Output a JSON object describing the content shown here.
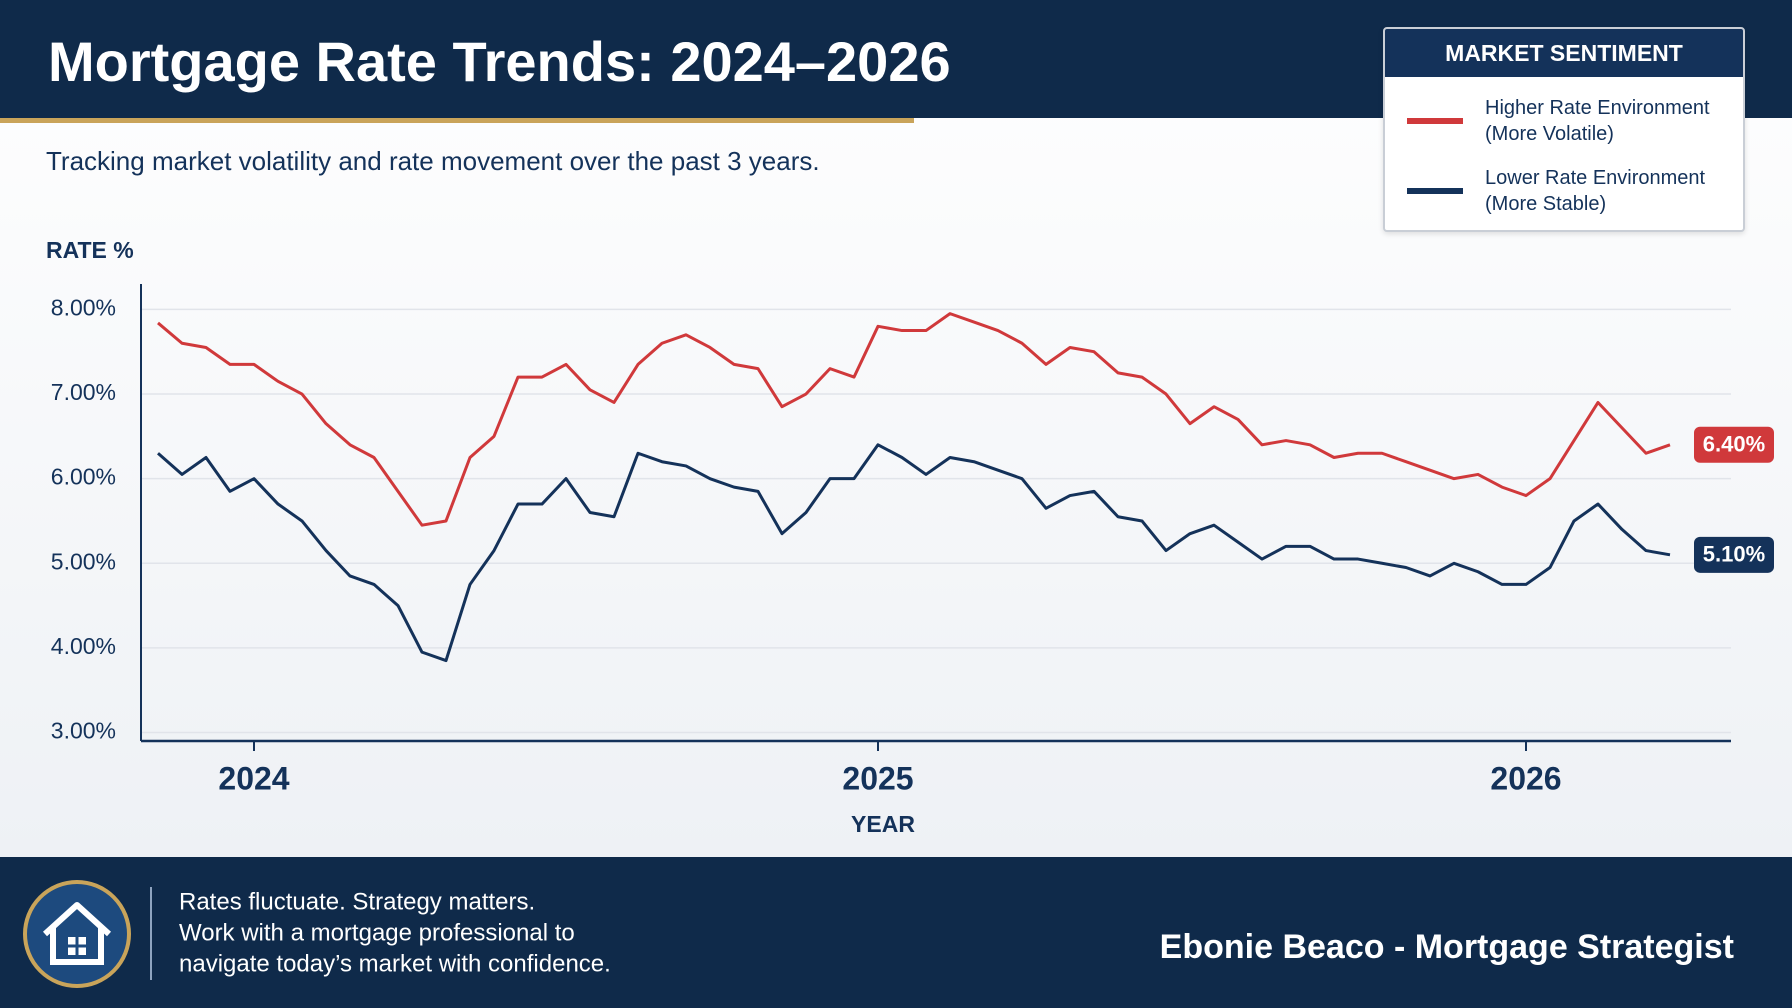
{
  "header": {
    "title": "Mortgage Rate Trends: 2024–2026",
    "subtitle": "Tracking market volatility and rate movement over the past 3 years."
  },
  "chart_data": {
    "type": "line",
    "y_label": "RATE %",
    "x_label": "YEAR",
    "legend_title": "MARKET SENTIMENT",
    "categories": [
      null,
      null,
      null,
      null,
      "2024",
      null,
      null,
      null,
      null,
      null,
      null,
      null,
      null,
      null,
      null,
      null,
      null,
      null,
      null,
      null,
      null,
      null,
      null,
      null,
      null,
      null,
      null,
      null,
      null,
      null,
      "2025",
      null,
      null,
      null,
      null,
      null,
      null,
      null,
      null,
      null,
      null,
      null,
      null,
      null,
      null,
      null,
      null,
      null,
      null,
      null,
      null,
      null,
      null,
      null,
      null,
      null,
      null,
      "2026",
      null,
      null,
      null,
      null,
      null,
      null
    ],
    "ylim": [
      2.9,
      8.3
    ],
    "yticks": [
      {
        "value": 8,
        "label": "8.00%"
      },
      {
        "value": 7,
        "label": "7.00%"
      },
      {
        "value": 6,
        "label": "6.00%"
      },
      {
        "value": 5,
        "label": "5.00%"
      },
      {
        "value": 4,
        "label": "4.00%"
      },
      {
        "value": 3,
        "label": "3.00%"
      }
    ],
    "grid": true,
    "series": [
      {
        "name": "Higher Rate Environment (More Volatile)",
        "color": "#d0393b",
        "values": [
          7.84,
          7.6,
          7.55,
          7.35,
          7.35,
          7.15,
          7.0,
          6.65,
          6.4,
          6.25,
          5.85,
          5.45,
          5.5,
          6.25,
          6.5,
          7.2,
          7.2,
          7.35,
          7.05,
          6.9,
          7.35,
          7.6,
          7.7,
          7.55,
          7.35,
          7.3,
          6.85,
          7.0,
          7.3,
          7.2,
          7.8,
          7.75,
          7.75,
          7.95,
          7.85,
          7.75,
          7.6,
          7.35,
          7.55,
          7.5,
          7.25,
          7.2,
          7.0,
          6.65,
          6.85,
          6.7,
          6.4,
          6.45,
          6.4,
          6.25,
          6.3,
          6.3,
          6.2,
          6.1,
          6.0,
          6.05,
          5.9,
          5.8,
          6.0,
          6.45,
          6.9,
          6.6,
          6.3,
          6.4
        ],
        "value_labels": [
          null,
          null,
          null,
          null,
          null,
          null,
          null,
          null,
          null,
          null,
          null,
          null,
          null,
          null,
          null,
          null,
          null,
          null,
          null,
          null,
          null,
          null,
          null,
          null,
          null,
          null,
          null,
          null,
          null,
          null,
          null,
          null,
          null,
          null,
          null,
          null,
          null,
          null,
          null,
          null,
          null,
          null,
          null,
          null,
          null,
          null,
          null,
          null,
          null,
          null,
          null,
          null,
          null,
          null,
          null,
          null,
          null,
          null,
          null,
          null,
          null,
          null,
          null,
          "6.40%"
        ]
      },
      {
        "name": "Lower Rate Environment (More Stable)",
        "color": "#14325a",
        "values": [
          6.3,
          6.05,
          6.25,
          5.85,
          6.0,
          5.7,
          5.5,
          5.15,
          4.85,
          4.75,
          4.5,
          3.95,
          3.85,
          4.75,
          5.15,
          5.7,
          5.7,
          6.0,
          5.6,
          5.55,
          6.3,
          6.2,
          6.15,
          6.0,
          5.9,
          5.85,
          5.35,
          5.6,
          6.0,
          6.0,
          6.4,
          6.25,
          6.05,
          6.25,
          6.2,
          6.1,
          6.0,
          5.65,
          5.8,
          5.85,
          5.55,
          5.5,
          5.15,
          5.35,
          5.45,
          5.25,
          5.05,
          5.2,
          5.2,
          5.05,
          5.05,
          5.0,
          4.95,
          4.85,
          5.0,
          4.9,
          4.75,
          4.75,
          4.95,
          5.5,
          5.7,
          5.4,
          5.15,
          5.1
        ],
        "value_labels": [
          null,
          null,
          null,
          null,
          null,
          null,
          null,
          null,
          null,
          null,
          null,
          null,
          null,
          null,
          null,
          null,
          null,
          null,
          null,
          null,
          null,
          null,
          null,
          null,
          null,
          null,
          null,
          null,
          null,
          null,
          null,
          null,
          null,
          null,
          null,
          null,
          null,
          null,
          null,
          null,
          null,
          null,
          null,
          null,
          null,
          null,
          null,
          null,
          null,
          null,
          null,
          null,
          null,
          null,
          null,
          null,
          null,
          null,
          null,
          null,
          null,
          null,
          null,
          "5.10%"
        ]
      }
    ]
  },
  "footer": {
    "message": [
      "Rates fluctuate. Strategy matters.",
      "Work with a mortgage professional to",
      "navigate today’s market with confidence."
    ],
    "signature": "Ebonie Beaco - Mortgage Strategist"
  }
}
